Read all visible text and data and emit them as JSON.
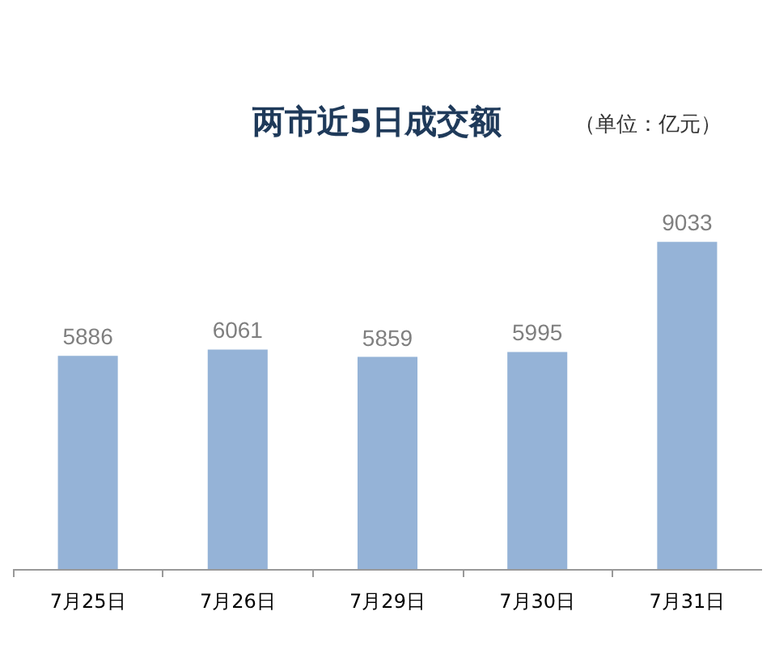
{
  "chart_data": {
    "type": "bar",
    "title": "两市近5日成交额",
    "subtitle": "（单位：亿元）",
    "categories": [
      "7月25日",
      "7月26日",
      "7月29日",
      "7月30日",
      "7月31日"
    ],
    "values": [
      5886,
      6061,
      5859,
      5995,
      9033
    ],
    "color": "#95b3d7",
    "data_labels": true
  }
}
